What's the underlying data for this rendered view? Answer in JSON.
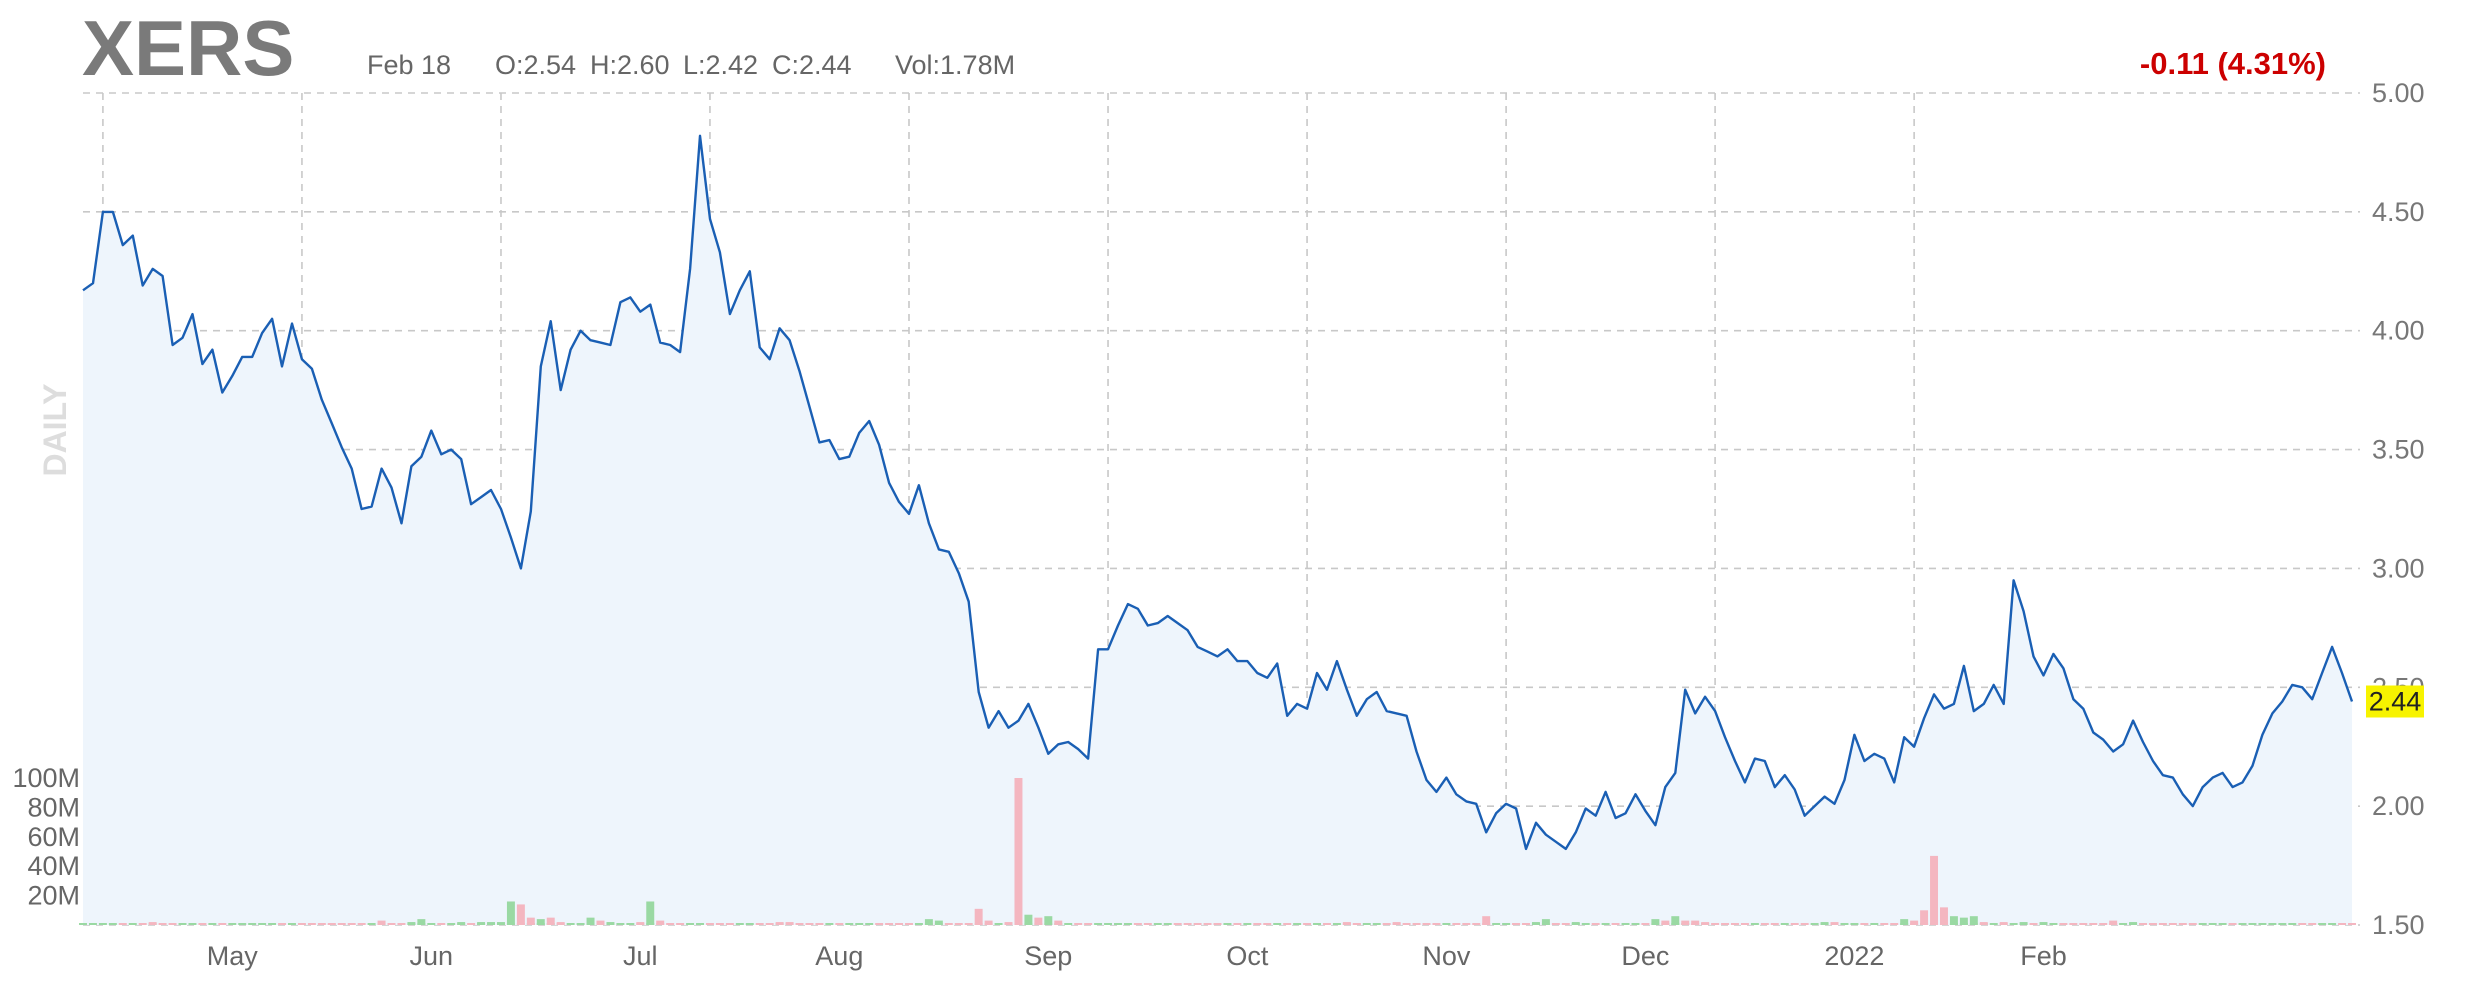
{
  "header": {
    "ticker": "XERS",
    "date": "Feb 18",
    "open": "O:2.54",
    "high": "H:2.60",
    "low": "L:2.42",
    "close": "C:2.44",
    "volume": "Vol:1.78M",
    "change": "-0.11 (4.31%)"
  },
  "period_label": "DAILY",
  "last_price_label": "2.44",
  "colors": {
    "line": "#1a5fb4",
    "area": "#eef5fc",
    "vol_up": "#9ad9a3",
    "vol_down": "#f4b6c0",
    "change": "#cc0000",
    "last_price_bg": "#f7f300"
  },
  "chart_data": {
    "type": "line",
    "xlabel": "",
    "ylabel": "",
    "ylim": [
      1.5,
      5.0
    ],
    "yticks": [
      "1.50",
      "2.00",
      "2.50",
      "3.00",
      "3.50",
      "4.00",
      "4.50",
      "5.00"
    ],
    "xtick_labels": [
      "May",
      "Jun",
      "Jul",
      "Aug",
      "Sep",
      "Oct",
      "Nov",
      "Dec",
      "2022",
      "Feb"
    ],
    "xtick_index": [
      15,
      35,
      56,
      76,
      97,
      117,
      137,
      157,
      178,
      197
    ],
    "grid_index": [
      2,
      22,
      42,
      63,
      83,
      103,
      123,
      143,
      164,
      184
    ],
    "volume_ticks": [
      "20M",
      "40M",
      "60M",
      "80M",
      "100M"
    ],
    "volume_tick_values": [
      20,
      40,
      60,
      80,
      100
    ],
    "volume_max": 100,
    "grid": true,
    "price": [
      4.17,
      4.2,
      4.5,
      4.5,
      4.36,
      4.4,
      4.19,
      4.26,
      4.23,
      3.94,
      3.97,
      4.07,
      3.86,
      3.92,
      3.74,
      3.81,
      3.89,
      3.89,
      3.99,
      4.05,
      3.85,
      4.03,
      3.88,
      3.84,
      3.71,
      3.61,
      3.51,
      3.42,
      3.25,
      3.26,
      3.42,
      3.34,
      3.19,
      3.43,
      3.47,
      3.58,
      3.48,
      3.5,
      3.46,
      3.27,
      3.3,
      3.33,
      3.25,
      3.13,
      3.0,
      3.24,
      3.85,
      4.04,
      3.75,
      3.92,
      4.0,
      3.96,
      3.95,
      3.94,
      4.12,
      4.14,
      4.08,
      4.11,
      3.95,
      3.94,
      3.91,
      4.26,
      4.82,
      4.47,
      4.33,
      4.07,
      4.17,
      4.25,
      3.93,
      3.88,
      4.01,
      3.96,
      3.83,
      3.68,
      3.53,
      3.54,
      3.46,
      3.47,
      3.57,
      3.62,
      3.52,
      3.36,
      3.28,
      3.23,
      3.35,
      3.19,
      3.08,
      3.07,
      2.98,
      2.86,
      2.48,
      2.33,
      2.4,
      2.33,
      2.36,
      2.43,
      2.33,
      2.22,
      2.26,
      2.27,
      2.24,
      2.2,
      2.66,
      2.66,
      2.76,
      2.85,
      2.83,
      2.76,
      2.77,
      2.8,
      2.77,
      2.74,
      2.67,
      2.65,
      2.63,
      2.66,
      2.61,
      2.61,
      2.56,
      2.54,
      2.6,
      2.38,
      2.43,
      2.41,
      2.56,
      2.49,
      2.61,
      2.49,
      2.38,
      2.45,
      2.48,
      2.4,
      2.39,
      2.38,
      2.23,
      2.11,
      2.06,
      2.12,
      2.05,
      2.02,
      2.01,
      1.89,
      1.97,
      2.01,
      1.99,
      1.82,
      1.93,
      1.88,
      1.85,
      1.82,
      1.89,
      1.99,
      1.96,
      2.06,
      1.95,
      1.97,
      2.05,
      1.98,
      1.92,
      2.08,
      2.14,
      2.49,
      2.39,
      2.46,
      2.4,
      2.29,
      2.19,
      2.1,
      2.2,
      2.19,
      2.08,
      2.13,
      2.07,
      1.96,
      2.0,
      2.04,
      2.01,
      2.11,
      2.3,
      2.19,
      2.22,
      2.2,
      2.1,
      2.29,
      2.25,
      2.37,
      2.47,
      2.41,
      2.43,
      2.59,
      2.4,
      2.43,
      2.51,
      2.43,
      2.95,
      2.82,
      2.63,
      2.55,
      2.64,
      2.58,
      2.45,
      2.41,
      2.31,
      2.28,
      2.23,
      2.26,
      2.36,
      2.27,
      2.19,
      2.13,
      2.12,
      2.05,
      2.0,
      2.08,
      2.12,
      2.14,
      2.08,
      2.1,
      2.17,
      2.3,
      2.39,
      2.44,
      2.51,
      2.5,
      2.45,
      2.56,
      2.67,
      2.56,
      2.44
    ],
    "volume": [
      {
        "i": 7,
        "v": 2,
        "up": false
      },
      {
        "i": 25,
        "v": 1,
        "up": false
      },
      {
        "i": 30,
        "v": 3,
        "up": false
      },
      {
        "i": 33,
        "v": 2,
        "up": true
      },
      {
        "i": 34,
        "v": 4,
        "up": true
      },
      {
        "i": 38,
        "v": 2,
        "up": true
      },
      {
        "i": 40,
        "v": 2,
        "up": true
      },
      {
        "i": 41,
        "v": 2,
        "up": true
      },
      {
        "i": 42,
        "v": 2,
        "up": true
      },
      {
        "i": 43,
        "v": 16,
        "up": true
      },
      {
        "i": 44,
        "v": 14,
        "up": false
      },
      {
        "i": 45,
        "v": 5,
        "up": false
      },
      {
        "i": 46,
        "v": 4,
        "up": true
      },
      {
        "i": 47,
        "v": 5,
        "up": false
      },
      {
        "i": 48,
        "v": 2,
        "up": false
      },
      {
        "i": 51,
        "v": 5,
        "up": true
      },
      {
        "i": 52,
        "v": 3,
        "up": false
      },
      {
        "i": 53,
        "v": 2,
        "up": true
      },
      {
        "i": 56,
        "v": 2,
        "up": false
      },
      {
        "i": 57,
        "v": 16,
        "up": true
      },
      {
        "i": 58,
        "v": 3,
        "up": false
      },
      {
        "i": 70,
        "v": 2,
        "up": false
      },
      {
        "i": 71,
        "v": 2,
        "up": false
      },
      {
        "i": 85,
        "v": 4,
        "up": true
      },
      {
        "i": 86,
        "v": 3,
        "up": true
      },
      {
        "i": 90,
        "v": 11,
        "up": false
      },
      {
        "i": 91,
        "v": 3,
        "up": false
      },
      {
        "i": 93,
        "v": 2,
        "up": false
      },
      {
        "i": 94,
        "v": 100,
        "up": false
      },
      {
        "i": 95,
        "v": 7,
        "up": true
      },
      {
        "i": 96,
        "v": 5,
        "up": false
      },
      {
        "i": 97,
        "v": 6,
        "up": true
      },
      {
        "i": 98,
        "v": 3,
        "up": false
      },
      {
        "i": 115,
        "v": 1,
        "up": true
      },
      {
        "i": 127,
        "v": 2,
        "up": false
      },
      {
        "i": 128,
        "v": 1,
        "up": false
      },
      {
        "i": 132,
        "v": 2,
        "up": false
      },
      {
        "i": 141,
        "v": 6,
        "up": false
      },
      {
        "i": 146,
        "v": 2,
        "up": true
      },
      {
        "i": 147,
        "v": 4,
        "up": true
      },
      {
        "i": 150,
        "v": 2,
        "up": true
      },
      {
        "i": 158,
        "v": 4,
        "up": true
      },
      {
        "i": 159,
        "v": 3,
        "up": false
      },
      {
        "i": 160,
        "v": 6,
        "up": true
      },
      {
        "i": 161,
        "v": 3,
        "up": false
      },
      {
        "i": 162,
        "v": 3,
        "up": false
      },
      {
        "i": 163,
        "v": 2,
        "up": false
      },
      {
        "i": 175,
        "v": 2,
        "up": true
      },
      {
        "i": 176,
        "v": 2,
        "up": false
      },
      {
        "i": 183,
        "v": 4,
        "up": true
      },
      {
        "i": 184,
        "v": 3,
        "up": false
      },
      {
        "i": 185,
        "v": 10,
        "up": false
      },
      {
        "i": 186,
        "v": 47,
        "up": false
      },
      {
        "i": 187,
        "v": 12,
        "up": false
      },
      {
        "i": 188,
        "v": 6,
        "up": true
      },
      {
        "i": 189,
        "v": 5,
        "up": true
      },
      {
        "i": 190,
        "v": 6,
        "up": true
      },
      {
        "i": 191,
        "v": 2,
        "up": false
      },
      {
        "i": 193,
        "v": 2,
        "up": false
      },
      {
        "i": 195,
        "v": 2,
        "up": true
      },
      {
        "i": 197,
        "v": 2,
        "up": true
      },
      {
        "i": 204,
        "v": 3,
        "up": false
      },
      {
        "i": 206,
        "v": 2,
        "up": true
      }
    ]
  }
}
